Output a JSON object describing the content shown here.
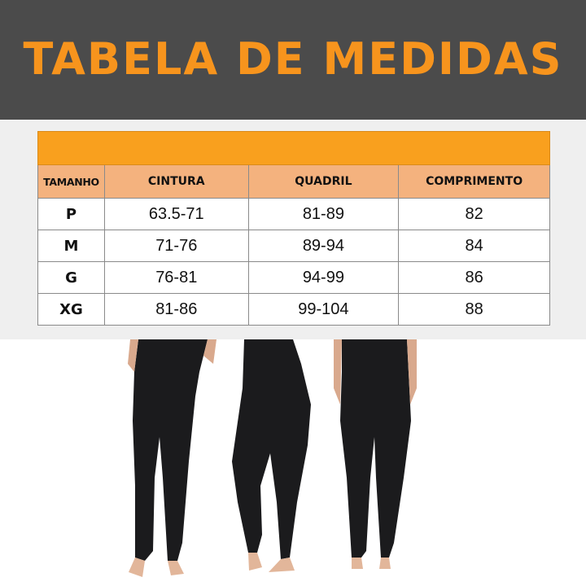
{
  "title": "TABELA DE MEDIDAS",
  "colors": {
    "banner": "#4b4b4b",
    "title": "#f7941d",
    "band": "#f9a01e",
    "header": "#f4b27e"
  },
  "table": {
    "headers": [
      "TAMANHO",
      "CINTURA",
      "QUADRIL",
      "COMPRIMENTO"
    ],
    "rows": [
      [
        "P",
        "63.5-71",
        "81-89",
        "82"
      ],
      [
        "M",
        "71-76",
        "89-94",
        "84"
      ],
      [
        "G",
        "76-81",
        "94-99",
        "86"
      ],
      [
        "XG",
        "81-86",
        "99-104",
        "88"
      ]
    ]
  }
}
